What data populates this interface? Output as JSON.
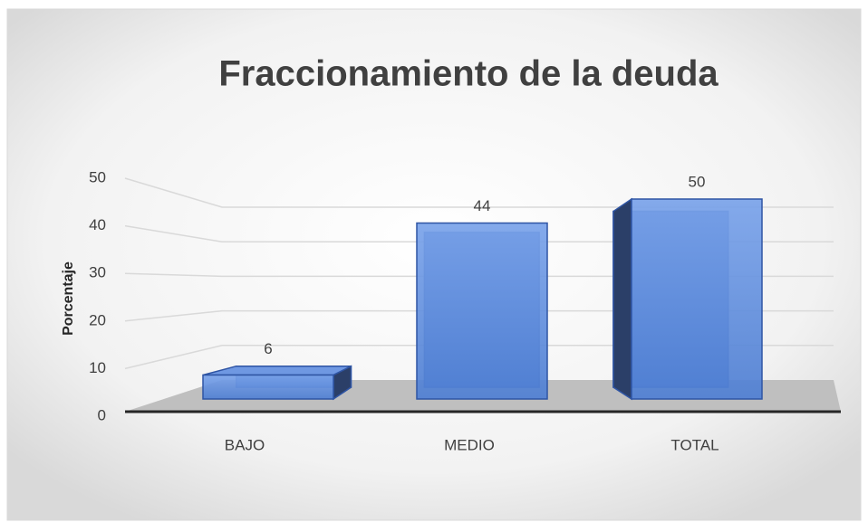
{
  "chart_data": {
    "type": "bar3d",
    "title": "Fraccionamiento de la deuda",
    "y_label": "Porcentaje",
    "categories": [
      "BAJO",
      "MEDIO",
      "TOTAL"
    ],
    "values": [
      6,
      44,
      50
    ],
    "color": "#5b8ad9",
    "ylim": [
      0,
      50
    ],
    "yticks": [
      0,
      10,
      20,
      30,
      40,
      50
    ],
    "grid": true,
    "data_labels": true
  }
}
